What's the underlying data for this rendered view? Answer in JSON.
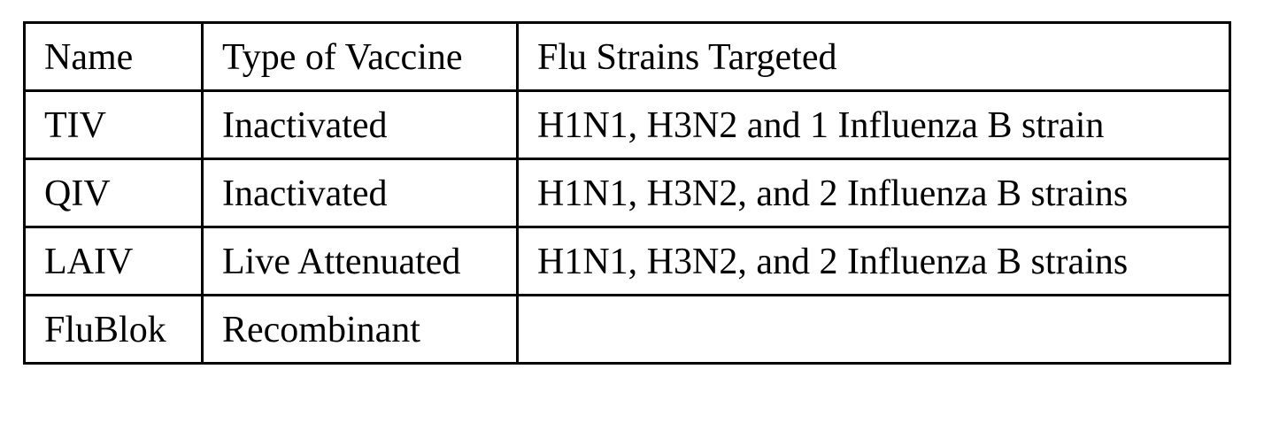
{
  "table": {
    "headers": [
      "Name",
      "Type of Vaccine",
      "Flu Strains Targeted"
    ],
    "rows": [
      [
        "TIV",
        "Inactivated",
        "H1N1, H3N2 and 1 Influenza B strain"
      ],
      [
        "QIV",
        "Inactivated",
        "H1N1, H3N2, and 2 Influenza B strains"
      ],
      [
        "LAIV",
        "Live Attenuated",
        "H1N1, H3N2, and 2 Influenza B strains"
      ],
      [
        "FluBlok",
        "Recombinant",
        ""
      ]
    ]
  }
}
